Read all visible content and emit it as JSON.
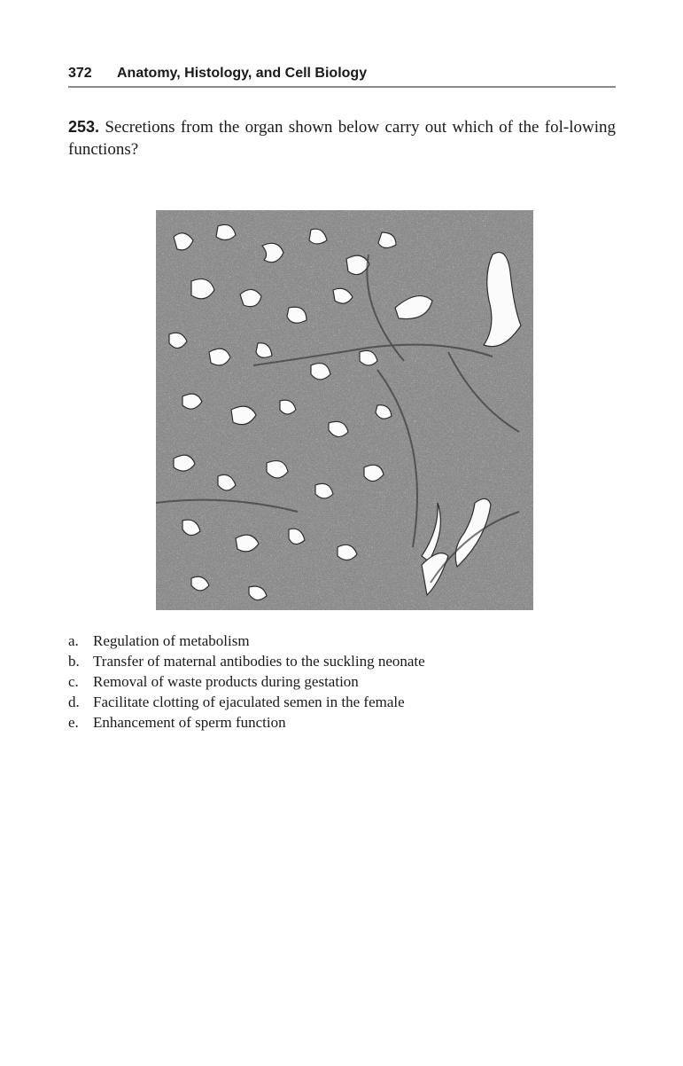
{
  "header": {
    "page_number": "372",
    "running_title": "Anatomy, Histology, and Cell Biology"
  },
  "question": {
    "number": "253.",
    "text": "Secretions from the organ shown below carry out which of the fol-lowing functions?"
  },
  "figure": {
    "description_icon": "micrograph-image"
  },
  "choices": [
    {
      "letter": "a.",
      "text": "Regulation of metabolism"
    },
    {
      "letter": "b.",
      "text": "Transfer of maternal antibodies to the suckling neonate"
    },
    {
      "letter": "c.",
      "text": "Removal of waste products during gestation"
    },
    {
      "letter": "d.",
      "text": "Facilitate clotting of ejaculated semen in the female"
    },
    {
      "letter": "e.",
      "text": "Enhancement of sperm function"
    }
  ]
}
